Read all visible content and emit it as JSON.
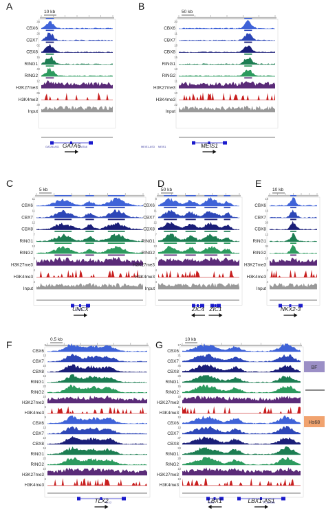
{
  "colors": {
    "CBX6": "#3f63d8",
    "CBX7": "#2d47b8",
    "CBX8": "#1a1e78",
    "RING1": "#1c7d52",
    "RING2": "#2c9a5e",
    "H3K27me3": "#5a2b78",
    "H3K4me3": "#c81e1e",
    "Input": "#9a9a9a",
    "BF": "#9b8fc6",
    "Hs68": "#f1a36f",
    "gene": "#1a1acc"
  },
  "panels": [
    {
      "id": "A",
      "scale": "10 kb",
      "tracks": [
        "CBX6",
        "CBX7",
        "CBX8",
        "RING1",
        "RING2",
        "H3K27me3",
        "H3K4me3",
        "Input"
      ],
      "ticks": [
        "34",
        "26",
        "62",
        "15",
        "40",
        "12",
        "65",
        "30"
      ],
      "genes": [
        {
          "name": "GATA6"
        }
      ],
      "small_genes": [
        "GATA6-AS1",
        "GATA6"
      ]
    },
    {
      "id": "B",
      "scale": "50 kb",
      "tracks": [
        "CBX6",
        "CBX7",
        "CBX8",
        "RING1",
        "RING2",
        "H3K27me3",
        "H3K4me3",
        "Input"
      ],
      "ticks": [
        "20",
        "11",
        "18",
        "15",
        "13",
        "11",
        "10",
        "22"
      ],
      "genes": [
        {
          "name": "MEIS1"
        }
      ],
      "small_genes": [
        "MEIS1-AS3",
        "MEIS1"
      ]
    },
    {
      "id": "C",
      "scale": "5 kb",
      "tracks": [
        "CBX6",
        "CBX7",
        "CBX8",
        "RING1",
        "RING2",
        "H3K27me3",
        "H3K4me3",
        "Input"
      ],
      "ticks": [
        "11",
        "11",
        "12",
        "7",
        "13",
        "9",
        "4",
        "4"
      ],
      "genes": [
        {
          "name": "UNCX"
        }
      ],
      "small_genes": [
        "UNCX"
      ]
    },
    {
      "id": "D",
      "scale": "50 kb",
      "tracks": [
        "CBX6",
        "CBX7",
        "CBX8",
        "RING1",
        "RING2",
        "H3K27me3",
        "H3K4me3",
        "Input"
      ],
      "ticks": [
        "8",
        "11",
        "12",
        "7",
        "13",
        "8",
        "4",
        "4"
      ],
      "genes": [
        {
          "name": "ZIC4"
        },
        {
          "name": "ZIC1"
        }
      ],
      "small_genes": []
    },
    {
      "id": "E",
      "scale": "10 kb",
      "tracks": [
        "CBX6",
        "CBX7",
        "CBX8",
        "RING1",
        "RING2",
        "H3K27me3",
        "H3K4me3",
        "Input"
      ],
      "ticks": [
        "18",
        "16",
        "29",
        "12",
        "34",
        "16",
        "4",
        "4"
      ],
      "genes": [
        {
          "name": "NKX2-3"
        }
      ],
      "small_genes": []
    },
    {
      "id": "F",
      "scale": "0.5 kb",
      "tracks": [
        "CBX6",
        "CBX7",
        "CBX8",
        "RING1",
        "RING2",
        "H3K27me3",
        "H3K4me3",
        "CBX6",
        "CBX7",
        "CBX8",
        "RING1",
        "RING2",
        "H3K27me3",
        "H3K4me3"
      ],
      "ticks": [
        "9",
        "13",
        "10",
        "16",
        "22",
        "10",
        "6",
        "9",
        "13",
        "10",
        "16",
        "22",
        "10",
        "6"
      ],
      "genes": [
        {
          "name": "TLX2"
        }
      ],
      "small_genes": [
        "TLX2"
      ]
    },
    {
      "id": "G",
      "scale": "10 kb",
      "tracks": [
        "CBX6",
        "CBX7",
        "CBX8",
        "RING1",
        "RING2",
        "H3K27me3",
        "H3K4me3",
        "CBX6",
        "CBX7",
        "CBX8",
        "RING1",
        "RING2",
        "H3K27me3",
        "H3K4me3"
      ],
      "ticks": [
        "17",
        "21",
        "46",
        "29",
        "15",
        "10",
        "11",
        "13",
        "13",
        "37",
        "24",
        "20",
        "13",
        "13"
      ],
      "genes": [
        {
          "name": "LBX1"
        },
        {
          "name": "LBX1-AS1"
        }
      ],
      "small_genes": [
        "LBX1",
        "FLJ41350"
      ],
      "side_labels": [
        {
          "text": "BF",
          "color_key": "BF"
        },
        {
          "text": "Hs68",
          "color_key": "Hs68"
        }
      ]
    }
  ]
}
